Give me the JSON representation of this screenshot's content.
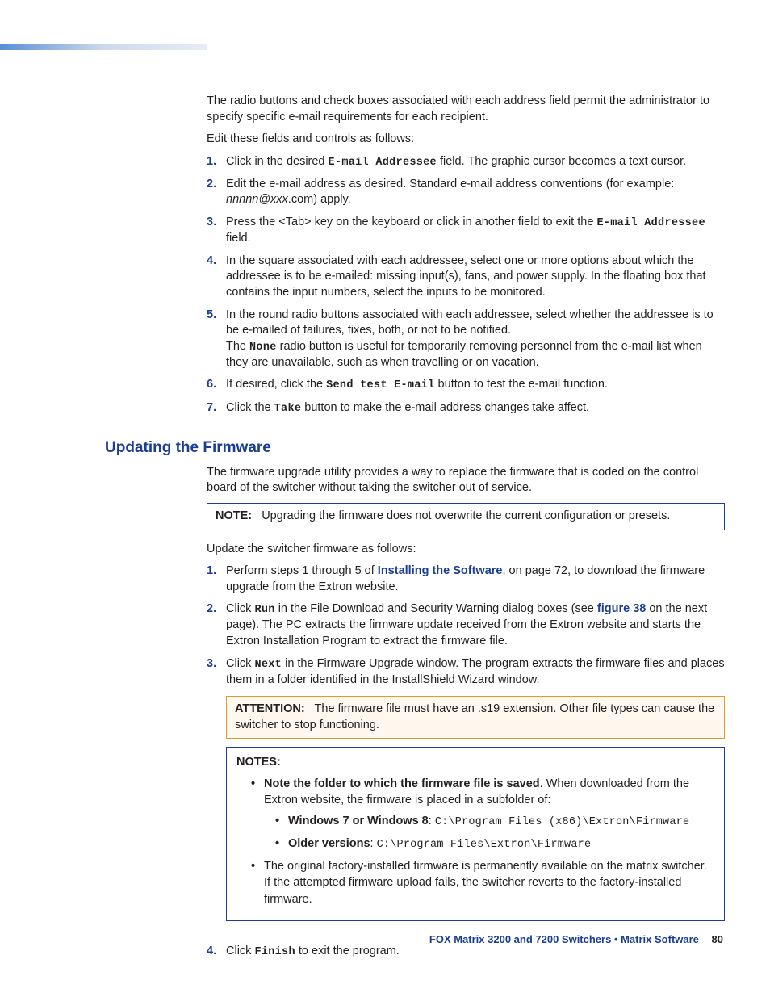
{
  "intro": {
    "p1": "The radio buttons and check boxes associated with each address field permit the administrator to specify specific e-mail requirements for each recipient.",
    "p2": "Edit these fields and controls as follows:"
  },
  "list1": {
    "i1a": "Click in the desired ",
    "i1b": "E-mail Addressee",
    "i1c": " field. The graphic cursor becomes a text cursor.",
    "i2a": "Edit the e-mail address as desired. Standard e-mail address conventions (for example: ",
    "i2b": "nnnnn@xxx",
    "i2c": ".com) apply.",
    "i3a": "Press the <Tab> key on the keyboard or click in another field to exit the ",
    "i3b": "E-mail Addressee",
    "i3c": " field.",
    "i4": "In the square associated with each addressee, select one or more options about which the addressee is to be e-mailed: missing input(s), fans, and power supply. In the floating box that contains the input numbers, select the inputs to be monitored.",
    "i5a": "In the round radio buttons associated with each addressee, select whether the addressee is to be e-mailed of failures, fixes, both, or not to be notified.",
    "i5b": "The ",
    "i5c": "None",
    "i5d": " radio button is useful for temporarily removing personnel from the e-mail list when they are unavailable, such as when travelling or on vacation.",
    "i6a": "If desired, click the ",
    "i6b": "Send test E-mail",
    "i6c": " button to test the e-mail function.",
    "i7a": "Click the ",
    "i7b": "Take",
    "i7c": " button to make the e-mail address changes take affect."
  },
  "heading2": "Updating the Firmware",
  "fw_intro": "The firmware upgrade utility provides a way to replace the firmware that is coded on the control board of the switcher without taking the switcher out of service.",
  "note1": {
    "label": "NOTE:",
    "text": "Upgrading the firmware does not overwrite the current configuration or presets."
  },
  "fw_update_msg": "Update the switcher firmware as follows:",
  "list2": {
    "i1a": "Perform steps 1 through 5 of ",
    "i1link": "Installing the Software",
    "i1b": ", on page 72, to download the firmware upgrade from the Extron website.",
    "i2a": "Click ",
    "i2b": "Run",
    "i2c": " in the File Download and Security Warning dialog boxes (see ",
    "i2link": "figure 38",
    "i2d": " on the next page). The PC extracts the firmware update received from the Extron website and starts the Extron Installation Program to extract the firmware file.",
    "i3a": "Click ",
    "i3b": "Next",
    "i3c": " in the Firmware Upgrade window. The program extracts the firmware files and places them in a folder identified in the InstallShield Wizard window.",
    "i4a": "Click ",
    "i4b": "Finish",
    "i4c": " to exit the program."
  },
  "attention": {
    "label": "ATTENTION:",
    "text": "The firmware file must have an .s19 extension. Other file types can cause the switcher to stop functioning."
  },
  "notes": {
    "label": "NOTES:",
    "b1a": "Note the folder to which the firmware file is saved",
    "b1b": ". When downloaded from the Extron website, the firmware is placed in a subfolder of:",
    "sub1a": "Windows 7 or Windows 8",
    "sub1b": ": ",
    "sub1c": "C:\\Program Files (x86)\\Extron\\Firmware",
    "sub2a": "Older versions",
    "sub2b": ": ",
    "sub2c": "C:\\Program Files\\Extron\\Firmware",
    "b2": "The original factory-installed firmware is permanently available on the matrix switcher. If the attempted firmware upload fails, the switcher reverts to the factory-installed firmware."
  },
  "footer": {
    "title": "FOX Matrix 3200 and 7200 Switchers • Matrix Software",
    "page": "80"
  }
}
